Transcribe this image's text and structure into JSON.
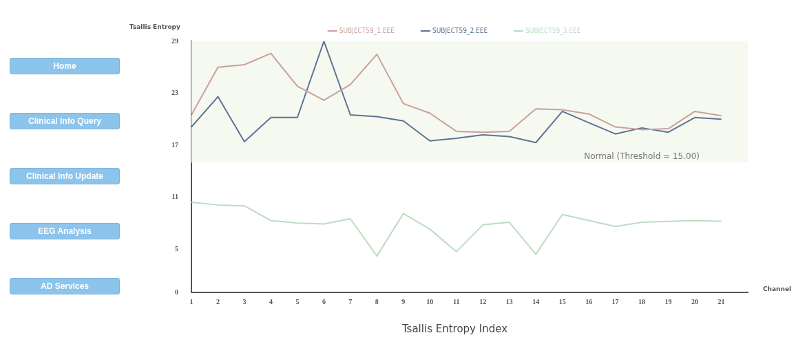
{
  "chart_data": {
    "type": "line",
    "title": "Tsallis Entropy Index",
    "xlabel": "Channel",
    "ylabel": "Tsallis Entropy",
    "legend": "top",
    "marker": "none",
    "x": [
      1,
      2,
      3,
      4,
      5,
      6,
      7,
      8,
      9,
      10,
      11,
      12,
      13,
      14,
      15,
      16,
      17,
      18,
      19,
      20,
      21
    ],
    "xlim": [
      1,
      22
    ],
    "xticks": [
      1,
      2,
      3,
      4,
      5,
      6,
      7,
      8,
      9,
      10,
      11,
      12,
      13,
      14,
      15,
      16,
      17,
      18,
      19,
      20,
      21
    ],
    "ylim": [
      0,
      29
    ],
    "yticks": [
      0,
      5,
      11,
      17,
      23,
      29
    ],
    "series": [
      {
        "name": "SUBJECT59_1.EEE",
        "color": "#c9a09c",
        "values": [
          20.5,
          26.0,
          26.3,
          27.6,
          23.8,
          22.2,
          24.0,
          27.5,
          21.8,
          20.7,
          18.6,
          18.5,
          18.6,
          21.2,
          21.1,
          20.6,
          19.1,
          18.8,
          18.9,
          20.9,
          20.4
        ]
      },
      {
        "name": "SUBJECT59_2.EEE",
        "color": "#5d7392",
        "values": [
          19.1,
          22.6,
          17.4,
          20.2,
          20.2,
          29.0,
          20.5,
          20.3,
          19.8,
          17.5,
          17.8,
          18.2,
          18.0,
          17.3,
          20.9,
          19.6,
          18.3,
          19.0,
          18.5,
          20.2,
          20.0
        ]
      },
      {
        "name": "SUBJECT59_3.EEE",
        "color": "#bcdcc2",
        "values": [
          10.4,
          10.1,
          10.0,
          8.3,
          8.0,
          7.9,
          8.5,
          4.2,
          9.1,
          7.3,
          4.7,
          7.8,
          8.1,
          4.4,
          9.0,
          8.3,
          7.6,
          8.1,
          8.2,
          8.3,
          8.2
        ]
      }
    ],
    "bands": [
      {
        "axis": "y",
        "from": 15,
        "to": 29,
        "label": "Normal (Threshold = 15.00)",
        "color": "#f5f9f0"
      }
    ],
    "annotations": [
      "Home",
      "Clinical Info Query",
      "Clinical Info Update",
      "EEG Analysis",
      "AD Services"
    ]
  }
}
